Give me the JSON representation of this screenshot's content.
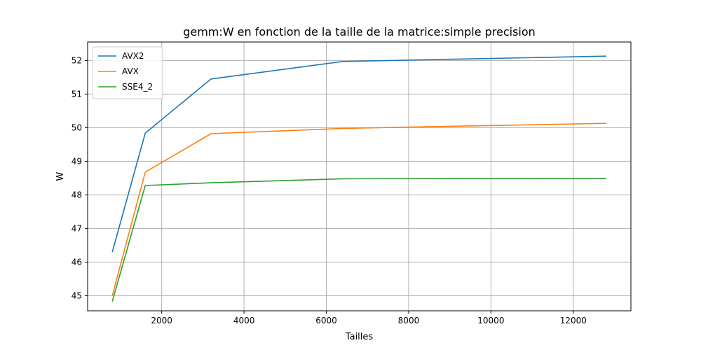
{
  "chart_data": {
    "type": "line",
    "title": "gemm:W en fonction de la taille de la matrice:simple precision",
    "xlabel": "Tailles",
    "ylabel": "W",
    "xlim": [
      200,
      13400
    ],
    "ylim": [
      44.55,
      52.55
    ],
    "xticks": [
      2000,
      4000,
      6000,
      8000,
      10000,
      12000
    ],
    "yticks": [
      45,
      46,
      47,
      48,
      49,
      50,
      51,
      52
    ],
    "grid": true,
    "legend_position": "top-left",
    "x": [
      800,
      1600,
      3200,
      6400,
      12800
    ],
    "series": [
      {
        "name": "AVX2",
        "color": "#1f77b4",
        "values": [
          46.3,
          49.84,
          51.45,
          51.97,
          52.13
        ]
      },
      {
        "name": "AVX",
        "color": "#ff7f0e",
        "values": [
          45.0,
          48.68,
          49.82,
          49.98,
          50.13
        ]
      },
      {
        "name": "SSE4_2",
        "color": "#2ca02c",
        "values": [
          44.83,
          48.28,
          48.36,
          48.48,
          48.49
        ]
      }
    ]
  }
}
